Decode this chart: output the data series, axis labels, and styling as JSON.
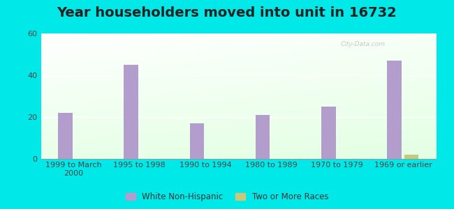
{
  "title": "Year householders moved into unit in 16732",
  "categories": [
    "1999 to March\n2000",
    "1995 to 1998",
    "1990 to 1994",
    "1980 to 1989",
    "1970 to 1979",
    "1969 or earlier"
  ],
  "white_non_hispanic": [
    22,
    45,
    17,
    21,
    25,
    47
  ],
  "two_or_more_races": [
    0,
    0,
    0,
    0,
    0,
    2
  ],
  "bar_color_white": "#b39dcd",
  "bar_color_two": "#c8c87a",
  "ylim": [
    0,
    60
  ],
  "yticks": [
    0,
    20,
    40,
    60
  ],
  "background_outer": "#00e8e8",
  "background_plot_top": "#f0f8f0",
  "background_plot_bottom": "#d8efd8",
  "legend_label_white": "White Non-Hispanic",
  "legend_label_two": "Two or More Races",
  "title_fontsize": 14,
  "tick_fontsize": 8
}
